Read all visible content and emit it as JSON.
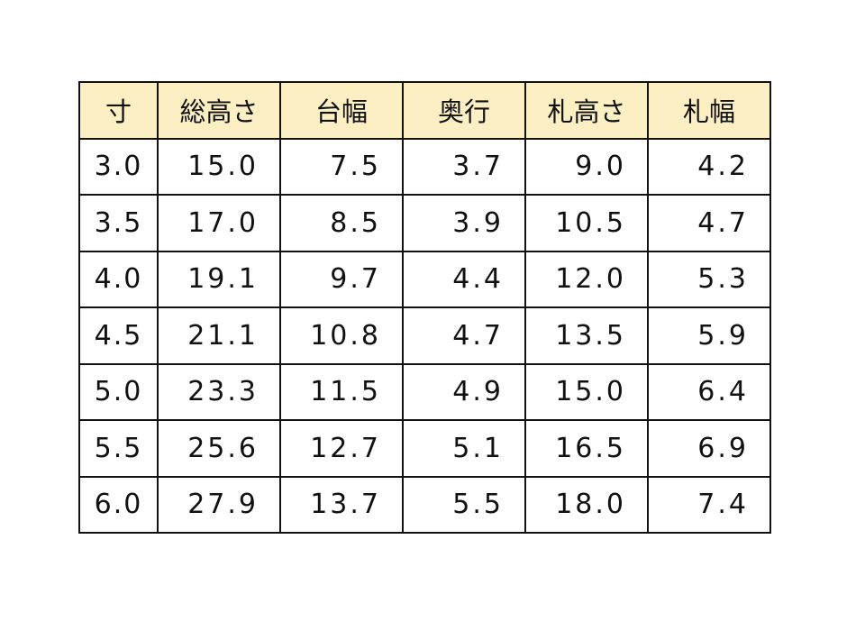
{
  "table": {
    "headers": [
      "寸",
      "総高さ",
      "台幅",
      "奥行",
      "札高さ",
      "札幅"
    ],
    "rows": [
      [
        "3.0",
        "15.0",
        "7.5",
        "3.7",
        "9.0",
        "4.2"
      ],
      [
        "3.5",
        "17.0",
        "8.5",
        "3.9",
        "10.5",
        "4.7"
      ],
      [
        "4.0",
        "19.1",
        "9.7",
        "4.4",
        "12.0",
        "5.3"
      ],
      [
        "4.5",
        "21.1",
        "10.8",
        "4.7",
        "13.5",
        "5.9"
      ],
      [
        "5.0",
        "23.3",
        "11.5",
        "4.9",
        "15.0",
        "6.4"
      ],
      [
        "5.5",
        "25.6",
        "12.7",
        "5.1",
        "16.5",
        "6.9"
      ],
      [
        "6.0",
        "27.9",
        "13.7",
        "5.5",
        "18.0",
        "7.4"
      ]
    ],
    "header_color": "#FCEFC4"
  }
}
